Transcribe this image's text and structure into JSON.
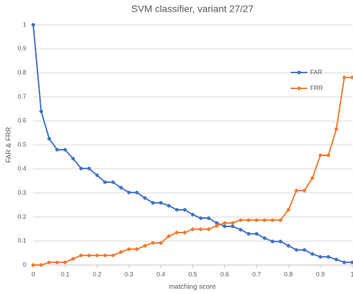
{
  "chart_data": {
    "type": "line",
    "title": "SVM classifier, variant 27/27",
    "xlabel": "matching score",
    "ylabel": "FAR & FRR",
    "x": [
      0,
      0.025,
      0.05,
      0.075,
      0.1,
      0.125,
      0.15,
      0.175,
      0.2,
      0.225,
      0.25,
      0.275,
      0.3,
      0.325,
      0.35,
      0.375,
      0.4,
      0.425,
      0.45,
      0.475,
      0.5,
      0.525,
      0.55,
      0.575,
      0.6,
      0.625,
      0.65,
      0.675,
      0.7,
      0.725,
      0.75,
      0.775,
      0.8,
      0.825,
      0.85,
      0.875,
      0.9,
      0.925,
      0.95,
      0.975,
      1
    ],
    "series": [
      {
        "name": "FAR",
        "color": "#4472c4",
        "values": [
          1.0,
          0.64,
          0.526,
          0.48,
          0.48,
          0.443,
          0.402,
          0.402,
          0.374,
          0.345,
          0.345,
          0.322,
          0.302,
          0.302,
          0.279,
          0.259,
          0.259,
          0.247,
          0.23,
          0.23,
          0.21,
          0.195,
          0.195,
          0.175,
          0.161,
          0.161,
          0.147,
          0.13,
          0.13,
          0.112,
          0.098,
          0.098,
          0.08,
          0.063,
          0.063,
          0.046,
          0.034,
          0.034,
          0.023,
          0.011,
          0.011
        ]
      },
      {
        "name": "FRR",
        "color": "#ed7d31",
        "values": [
          0,
          0,
          0.011,
          0.011,
          0.011,
          0.026,
          0.04,
          0.04,
          0.04,
          0.04,
          0.04,
          0.054,
          0.066,
          0.066,
          0.08,
          0.092,
          0.092,
          0.12,
          0.135,
          0.135,
          0.149,
          0.149,
          0.149,
          0.163,
          0.175,
          0.175,
          0.187,
          0.187,
          0.187,
          0.187,
          0.187,
          0.187,
          0.23,
          0.31,
          0.31,
          0.362,
          0.457,
          0.457,
          0.566,
          0.781,
          0.781
        ]
      }
    ],
    "xlim": [
      0,
      1
    ],
    "xticks": [
      0,
      0.1,
      0.2,
      0.3,
      0.4,
      0.5,
      0.6,
      0.7,
      0.8,
      0.9,
      1
    ],
    "ylim": [
      0,
      1
    ],
    "yticks": [
      0,
      0.1,
      0.2,
      0.3,
      0.4,
      0.5,
      0.6,
      0.7,
      0.8,
      0.9,
      1
    ],
    "grid": true,
    "legend": "upper right"
  }
}
